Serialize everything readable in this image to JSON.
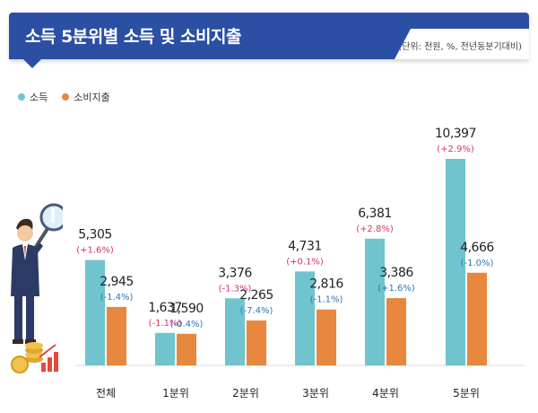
{
  "header": {
    "title": "소득 5분위별 소득 및 소비지출",
    "unit": "(단위: 천원, %, 전년동분기대비)"
  },
  "colors": {
    "header_bg": "#2b4fa3",
    "income": "#6fc4cd",
    "spending": "#e8873e",
    "income_change_text": "#d6336c",
    "spending_change_text": "#2e73b8",
    "value_text": "#222222"
  },
  "chart_data": {
    "type": "bar",
    "categories": [
      "전체",
      "1분위",
      "2분위",
      "3분위",
      "4분위",
      "5분위"
    ],
    "series": [
      {
        "name": "소득",
        "values": [
          5305,
          1637,
          3376,
          4731,
          6381,
          10397
        ],
        "value_labels": [
          "5,305",
          "1,637",
          "3,376",
          "4,731",
          "6,381",
          "10,397"
        ],
        "change_labels": [
          "(+1.6%)",
          "(-1.1%)",
          "(-1.3%)",
          "(+0.1%)",
          "(+2.8%)",
          "(+2.9%)"
        ]
      },
      {
        "name": "소비지출",
        "values": [
          2945,
          1590,
          2265,
          2816,
          3386,
          4666
        ],
        "value_labels": [
          "2,945",
          "1,590",
          "2,265",
          "2,816",
          "3,386",
          "4,666"
        ],
        "change_labels": [
          "(-1.4%)",
          "(-0.4%)",
          "(-7.4%)",
          "(-1.1%)",
          "(+1.6%)",
          "(-1.0%)"
        ]
      }
    ],
    "legend_position": "top-left",
    "grid": false,
    "ylim": [
      0,
      12000
    ]
  }
}
